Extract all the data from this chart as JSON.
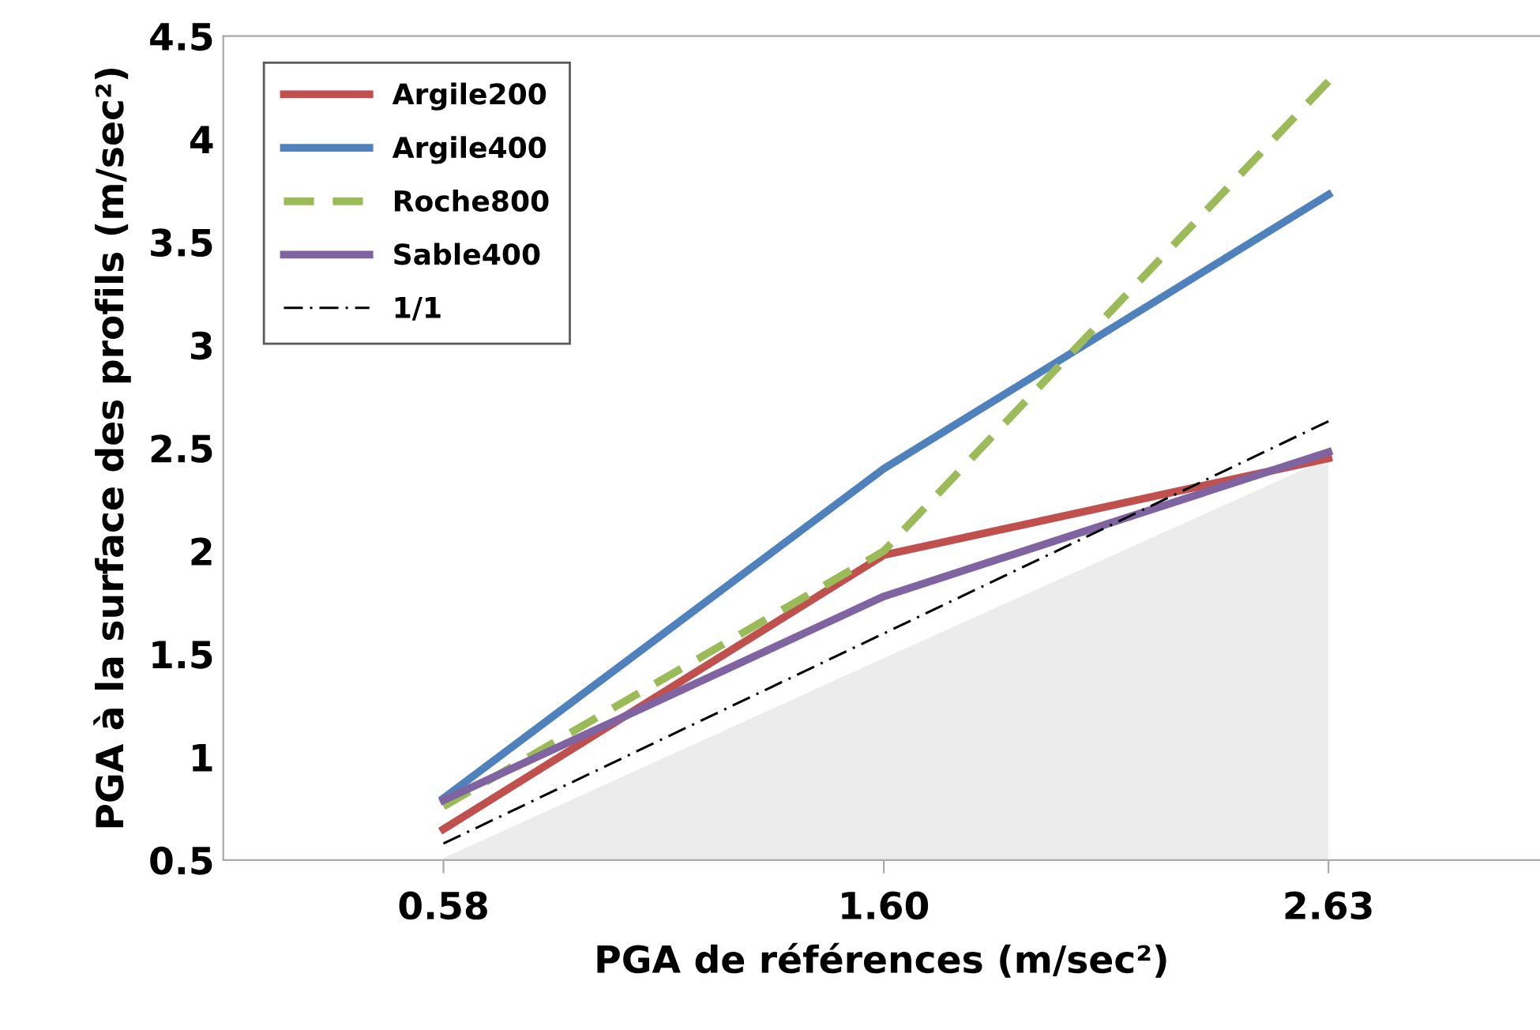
{
  "chart_data": {
    "type": "line",
    "xlabel": "PGA de références (m/sec²)",
    "ylabel": "PGA à la surface des profils (m/sec²)",
    "x": [
      0.58,
      1.6,
      2.63
    ],
    "xlim": [
      0.07,
      3.12
    ],
    "xticks": [
      0.58,
      {
        "value": 1.6,
        "label": "1.60"
      },
      2.63
    ],
    "series": [
      {
        "type": "area",
        "color": "#ececec",
        "values": [
          0.51,
          1.48,
          2.45
        ]
      },
      {
        "name": "Argile200",
        "color": "#c0504d",
        "values": [
          0.65,
          1.98,
          2.45
        ]
      },
      {
        "name": "Argile400",
        "color": "#4f81bd",
        "values": [
          0.8,
          2.4,
          3.73
        ]
      },
      {
        "name": "Roche800",
        "color": "#9bbb59",
        "line_style": "dashed",
        "values": [
          0.76,
          2.0,
          4.28
        ]
      },
      {
        "name": "Sable400",
        "color": "#8064a2",
        "values": [
          0.79,
          1.78,
          2.48
        ]
      },
      {
        "name": "1/1",
        "color": "#000000",
        "line_style": "dashdot",
        "values": [
          0.58,
          1.6,
          2.63
        ]
      }
    ],
    "ylim": [
      0.5,
      4.5
    ],
    "yticks": [
      0.5,
      1,
      1.5,
      2,
      2.5,
      3,
      3.5,
      4,
      4.5
    ],
    "grid": false,
    "legend": "top left"
  }
}
